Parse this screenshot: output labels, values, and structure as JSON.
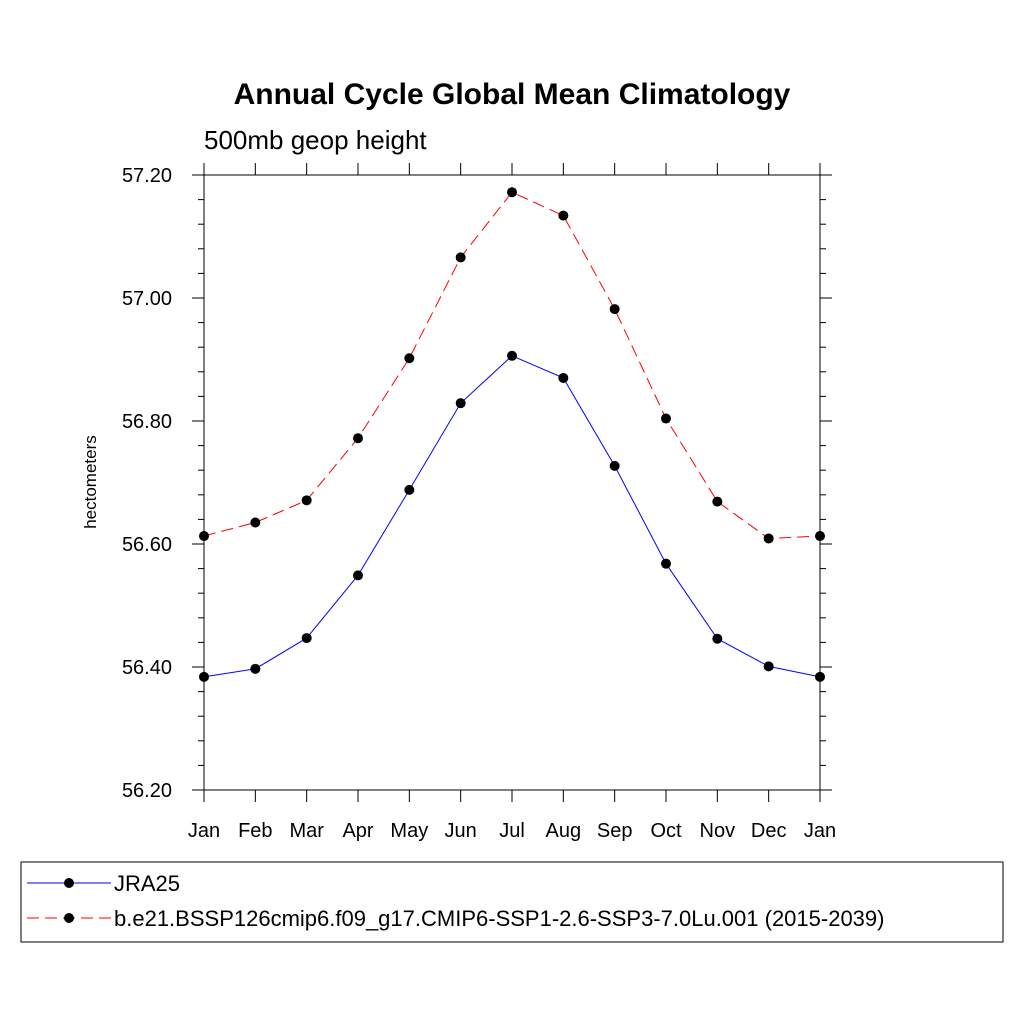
{
  "chart_data": {
    "type": "line",
    "title": "Annual Cycle Global Mean Climatology",
    "subtitle": "500mb geop height",
    "ylabel": "hectometers",
    "xlabel": "",
    "categories": [
      "Jan",
      "Feb",
      "Mar",
      "Apr",
      "May",
      "Jun",
      "Jul",
      "Aug",
      "Sep",
      "Oct",
      "Nov",
      "Dec",
      "Jan"
    ],
    "ylim": [
      56.2,
      57.2
    ],
    "yticks": [
      "56.20",
      "56.40",
      "56.60",
      "56.80",
      "57.00",
      "57.20"
    ],
    "grid": false,
    "legend_position": "bottom",
    "series": [
      {
        "name": "JRA25",
        "color": "#0000ff",
        "line_style": "solid",
        "marker": "filled-circle",
        "values": [
          56.384,
          56.397,
          56.447,
          56.549,
          56.688,
          56.829,
          56.906,
          56.87,
          56.727,
          56.568,
          56.446,
          56.401,
          56.384
        ]
      },
      {
        "name": "b.e21.BSSP126cmip6.f09_g17.CMIP6-SSP1-2.6-SSP3-7.0Lu.001 (2015-2039)",
        "color": "#ff0000",
        "line_style": "dashed",
        "marker": "filled-circle",
        "values": [
          56.613,
          56.635,
          56.671,
          56.772,
          56.902,
          57.066,
          57.172,
          57.134,
          56.982,
          56.804,
          56.669,
          56.609,
          56.613
        ]
      }
    ]
  }
}
